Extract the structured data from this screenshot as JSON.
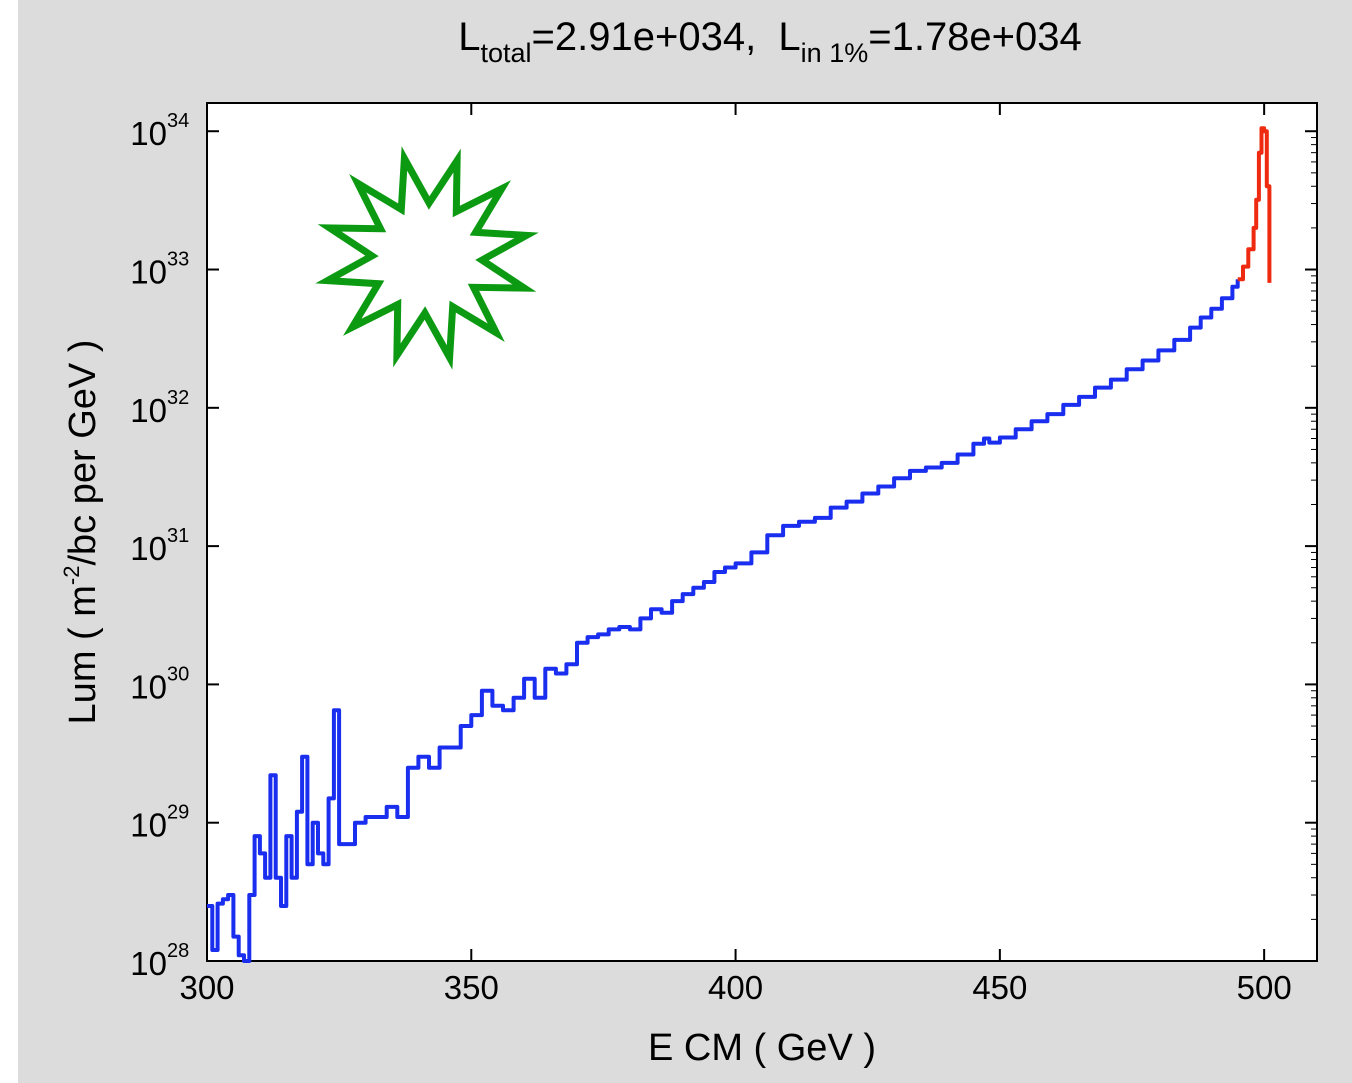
{
  "chart_data": {
    "type": "line",
    "title": {
      "total_symbol": "L",
      "total_subscript": "total",
      "total_value": "=2.91e+034,  ",
      "in1_symbol": "L",
      "in1_subscript": "in 1%",
      "in1_value": "=1.78e+034"
    },
    "xlabel": "E CM ( GeV )",
    "ylabel": {
      "prefix": "Lum ( m",
      "superscript": "-2",
      "suffix": "/bc per GeV )"
    },
    "xlim": [
      300,
      510
    ],
    "ylim": [
      1e+28,
      1.6e+34
    ],
    "y_scale": "log",
    "grid": false,
    "x_ticks": [
      {
        "value": 300,
        "label": "300"
      },
      {
        "value": 350,
        "label": "350"
      },
      {
        "value": 400,
        "label": "400"
      },
      {
        "value": 450,
        "label": "450"
      },
      {
        "value": 500,
        "label": "500"
      }
    ],
    "y_ticks": [
      {
        "value": 1e+28,
        "base": "10",
        "exp": "28"
      },
      {
        "value": 1e+29,
        "base": "10",
        "exp": "29"
      },
      {
        "value": 1e+30,
        "base": "10",
        "exp": "30"
      },
      {
        "value": 1e+31,
        "base": "10",
        "exp": "31"
      },
      {
        "value": 1e+32,
        "base": "10",
        "exp": "32"
      },
      {
        "value": 1e+33,
        "base": "10",
        "exp": "33"
      },
      {
        "value": 1e+34,
        "base": "10",
        "exp": "34"
      }
    ],
    "series": [
      {
        "color": "#1a2ef0",
        "x": [
          300,
          301,
          302,
          303,
          304,
          305,
          306,
          307,
          308,
          309,
          310,
          311,
          312,
          313,
          314,
          315,
          316,
          317,
          318,
          319,
          320,
          321,
          322,
          323,
          324,
          325,
          326,
          328,
          330,
          332,
          334,
          336,
          338,
          340,
          342,
          344,
          346,
          348,
          350,
          352,
          354,
          356,
          358,
          360,
          362,
          364,
          366,
          368,
          370,
          372,
          374,
          376,
          378,
          380,
          382,
          384,
          386,
          388,
          390,
          392,
          394,
          396,
          398,
          400,
          403,
          406,
          409,
          412,
          415,
          418,
          421,
          424,
          427,
          430,
          433,
          436,
          439,
          442,
          445,
          447,
          448,
          450,
          453,
          456,
          459,
          462,
          465,
          468,
          471,
          474,
          477,
          480,
          483,
          486,
          488,
          490,
          492,
          494,
          495
        ],
        "y": [
          2.5e+28,
          1.2e+28,
          2.6e+28,
          2.8e+28,
          3e+28,
          1.5e+28,
          1.1e+28,
          1e+28,
          3e+28,
          8e+28,
          6e+28,
          4e+28,
          2.2e+29,
          4e+28,
          2.5e+28,
          8e+28,
          4e+28,
          1.2e+29,
          3e+29,
          5e+28,
          1e+29,
          6e+28,
          5e+28,
          1.5e+29,
          6.5e+29,
          7e+28,
          7e+28,
          1e+29,
          1.1e+29,
          1.1e+29,
          1.3e+29,
          1.1e+29,
          2.5e+29,
          3e+29,
          2.5e+29,
          3.5e+29,
          3.5e+29,
          5e+29,
          6e+29,
          9e+29,
          7e+29,
          6.5e+29,
          8e+29,
          1.1e+30,
          8e+29,
          1.3e+30,
          1.2e+30,
          1.4e+30,
          2e+30,
          2.2e+30,
          2.3e+30,
          2.5e+30,
          2.6e+30,
          2.5e+30,
          3e+30,
          3.5e+30,
          3.3e+30,
          4e+30,
          4.5e+30,
          5e+30,
          5.5e+30,
          6.5e+30,
          7e+30,
          7.5e+30,
          9e+30,
          1.2e+31,
          1.4e+31,
          1.5e+31,
          1.6e+31,
          1.9e+31,
          2.1e+31,
          2.4e+31,
          2.7e+31,
          3.1e+31,
          3.5e+31,
          3.7e+31,
          4e+31,
          4.6e+31,
          5.5e+31,
          6e+31,
          5.6e+31,
          6.1e+31,
          7e+31,
          8e+31,
          9e+31,
          1.05e+32,
          1.2e+32,
          1.4e+32,
          1.6e+32,
          1.9e+32,
          2.2e+32,
          2.6e+32,
          3.1e+32,
          3.8e+32,
          4.5e+32,
          5.2e+32,
          6.2e+32,
          7.5e+32,
          8.5e+32
        ]
      },
      {
        "color": "#ee2a10",
        "x": [
          495,
          496,
          497,
          498,
          498.5,
          499,
          499.5,
          500,
          500.5,
          501
        ],
        "y": [
          8.5e+32,
          1.05e+33,
          1.4e+33,
          2e+33,
          3.2e+33,
          7e+33,
          1.05e+34,
          1e+34,
          4e+33,
          8e+32
        ]
      }
    ],
    "annotation": {
      "shape": "starburst",
      "stroke": "#0c9a12",
      "fill": "#ffffff"
    }
  }
}
